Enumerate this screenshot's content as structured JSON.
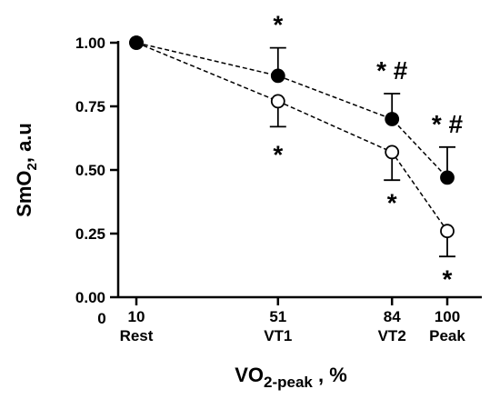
{
  "chart_data": {
    "type": "line",
    "xlabel_main": "VO",
    "xlabel_sub": "2-peak",
    "xlabel_tail": " , %",
    "ylabel_main": "SmO",
    "ylabel_sub": "2",
    "ylabel_tail": ", a.u",
    "xlim": [
      0,
      110
    ],
    "ylim": [
      0,
      1.0
    ],
    "origin_label": "0",
    "x_ticks": [
      {
        "value": 10,
        "label": "10",
        "sublabel": "Rest"
      },
      {
        "value": 51,
        "label": "51",
        "sublabel": "VT1"
      },
      {
        "value": 84,
        "label": "84",
        "sublabel": "VT2"
      },
      {
        "value": 100,
        "label": "100",
        "sublabel": "Peak"
      }
    ],
    "y_ticks": [
      {
        "value": 0.0,
        "label": "0.00"
      },
      {
        "value": 0.25,
        "label": "0.25"
      },
      {
        "value": 0.5,
        "label": "0.50"
      },
      {
        "value": 0.75,
        "label": "0.75"
      },
      {
        "value": 1.0,
        "label": "1.00"
      }
    ],
    "series": [
      {
        "style": "filled",
        "x": [
          10,
          51,
          84,
          100
        ],
        "y": [
          1.0,
          0.87,
          0.7,
          0.47
        ],
        "error": [
          0,
          0.11,
          0.1,
          0.12
        ],
        "error_dir": "up"
      },
      {
        "style": "open",
        "x": [
          10,
          51,
          84,
          100
        ],
        "y": [
          1.0,
          0.77,
          0.57,
          0.26
        ],
        "error": [
          0,
          0.1,
          0.11,
          0.1
        ],
        "error_dir": "down"
      }
    ],
    "annotations": [
      {
        "x": 51,
        "y": 1.08,
        "text": "*"
      },
      {
        "x": 51,
        "y": 0.57,
        "text": "*"
      },
      {
        "x": 84,
        "y": 0.9,
        "text": "* #"
      },
      {
        "x": 84,
        "y": 0.38,
        "text": "*"
      },
      {
        "x": 100,
        "y": 0.69,
        "text": "* #"
      },
      {
        "x": 100,
        "y": 0.08,
        "text": "*"
      }
    ],
    "grid": false,
    "legend": "none"
  }
}
